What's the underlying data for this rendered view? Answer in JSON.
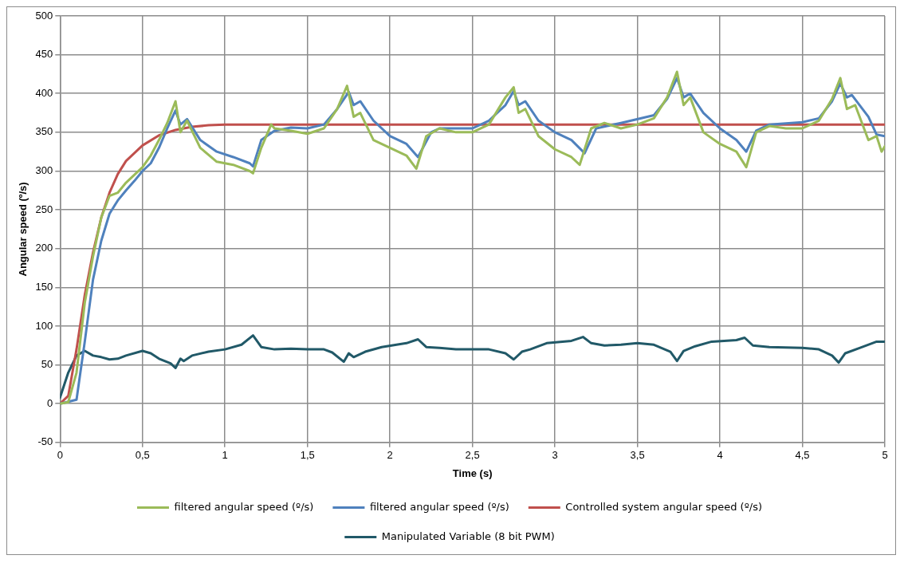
{
  "chart_data": {
    "type": "line",
    "xlabel": "Time (s)",
    "ylabel": "Angular speed (º/s)",
    "xlim": [
      0,
      5
    ],
    "xticks": [
      0,
      {
        "value": 0.5,
        "label": "0,5"
      },
      1,
      {
        "value": 1.5,
        "label": "1,5"
      },
      2,
      {
        "value": 2.5,
        "label": "2,5"
      },
      3,
      {
        "value": 3.5,
        "label": "3,5"
      },
      4,
      {
        "value": 4.5,
        "label": "4,5"
      },
      5
    ],
    "ylim": [
      -50,
      500
    ],
    "yticks": [
      -50,
      0,
      50,
      100,
      150,
      200,
      250,
      300,
      350,
      400,
      450,
      500
    ],
    "grid": true,
    "legend": "bottom",
    "marker": "none",
    "line_style": "solid",
    "series": [
      {
        "name": "filtered angular speed (º/s)",
        "color": "#9bbb59",
        "x": [
          0,
          0.05,
          0.1,
          0.15,
          0.2,
          0.25,
          0.3,
          0.35,
          0.4,
          0.45,
          0.5,
          0.55,
          0.6,
          0.65,
          0.7,
          0.73,
          0.77,
          0.85,
          0.95,
          1.05,
          1.15,
          1.17,
          1.22,
          1.28,
          1.3,
          1.4,
          1.5,
          1.6,
          1.68,
          1.74,
          1.78,
          1.82,
          1.9,
          2.0,
          2.1,
          2.16,
          2.22,
          2.3,
          2.4,
          2.5,
          2.6,
          2.7,
          2.75,
          2.78,
          2.82,
          2.9,
          3.0,
          3.1,
          3.15,
          3.22,
          3.3,
          3.4,
          3.5,
          3.6,
          3.68,
          3.74,
          3.78,
          3.82,
          3.9,
          4.0,
          4.1,
          4.16,
          4.22,
          4.3,
          4.4,
          4.5,
          4.6,
          4.68,
          4.73,
          4.77,
          4.82,
          4.9,
          4.95,
          4.98,
          5
        ],
        "values": [
          0,
          2,
          40,
          130,
          190,
          240,
          268,
          272,
          285,
          295,
          305,
          320,
          340,
          362,
          390,
          350,
          365,
          330,
          312,
          308,
          300,
          297,
          330,
          360,
          355,
          352,
          348,
          355,
          380,
          410,
          370,
          375,
          340,
          330,
          320,
          303,
          345,
          355,
          350,
          350,
          360,
          395,
          408,
          375,
          380,
          345,
          328,
          318,
          308,
          355,
          362,
          355,
          360,
          368,
          395,
          428,
          385,
          395,
          350,
          335,
          325,
          305,
          350,
          358,
          355,
          355,
          365,
          393,
          420,
          380,
          385,
          340,
          345,
          325,
          332
        ]
      },
      {
        "name": "filtered angular speed (º/s)",
        "color": "#4f81bd",
        "x": [
          0,
          0.1,
          0.15,
          0.2,
          0.25,
          0.3,
          0.35,
          0.4,
          0.45,
          0.5,
          0.55,
          0.6,
          0.65,
          0.7,
          0.73,
          0.77,
          0.85,
          0.95,
          1.05,
          1.15,
          1.17,
          1.22,
          1.3,
          1.4,
          1.5,
          1.6,
          1.68,
          1.75,
          1.78,
          1.82,
          1.9,
          2.0,
          2.1,
          2.17,
          2.25,
          2.3,
          2.5,
          2.6,
          2.7,
          2.75,
          2.78,
          2.82,
          2.9,
          3.0,
          3.1,
          3.18,
          3.25,
          3.4,
          3.6,
          3.68,
          3.74,
          3.78,
          3.82,
          3.9,
          4.0,
          4.1,
          4.16,
          4.22,
          4.3,
          4.5,
          4.6,
          4.68,
          4.73,
          4.77,
          4.8,
          4.9,
          4.95,
          5
        ],
        "values": [
          0,
          5,
          80,
          160,
          210,
          245,
          262,
          275,
          287,
          300,
          310,
          330,
          355,
          378,
          360,
          367,
          340,
          325,
          318,
          310,
          306,
          340,
          352,
          356,
          355,
          360,
          380,
          402,
          385,
          390,
          365,
          345,
          335,
          318,
          350,
          355,
          355,
          365,
          385,
          403,
          385,
          390,
          365,
          350,
          340,
          323,
          355,
          362,
          372,
          393,
          420,
          395,
          400,
          375,
          355,
          340,
          325,
          352,
          360,
          363,
          368,
          390,
          413,
          395,
          398,
          370,
          347,
          345
        ]
      },
      {
        "name": "Controlled system angular speed (º/s)",
        "color": "#c0504d",
        "x": [
          0,
          0.05,
          0.1,
          0.15,
          0.2,
          0.25,
          0.3,
          0.35,
          0.4,
          0.5,
          0.6,
          0.7,
          0.8,
          0.9,
          1.0,
          1.5,
          2,
          3,
          4,
          5
        ],
        "values": [
          0,
          10,
          70,
          140,
          195,
          240,
          272,
          296,
          313,
          333,
          346,
          353,
          357,
          359,
          360,
          360,
          360,
          360,
          360,
          360
        ]
      },
      {
        "name": "Manipulated Variable (8 bit PWM)",
        "color": "#215968",
        "x": [
          0,
          0.05,
          0.1,
          0.15,
          0.2,
          0.25,
          0.3,
          0.35,
          0.4,
          0.5,
          0.55,
          0.6,
          0.67,
          0.7,
          0.73,
          0.75,
          0.8,
          0.9,
          1.0,
          1.1,
          1.17,
          1.22,
          1.3,
          1.4,
          1.5,
          1.6,
          1.65,
          1.72,
          1.75,
          1.78,
          1.85,
          1.95,
          2.1,
          2.17,
          2.22,
          2.3,
          2.4,
          2.5,
          2.6,
          2.7,
          2.75,
          2.8,
          2.85,
          2.95,
          3.1,
          3.17,
          3.22,
          3.3,
          3.4,
          3.5,
          3.6,
          3.7,
          3.74,
          3.78,
          3.85,
          3.95,
          4.1,
          4.15,
          4.2,
          4.3,
          4.5,
          4.6,
          4.68,
          4.72,
          4.76,
          4.85,
          4.95,
          5
        ],
        "values": [
          8,
          40,
          62,
          68,
          62,
          60,
          57,
          58,
          62,
          68,
          65,
          58,
          52,
          46,
          58,
          55,
          62,
          67,
          70,
          76,
          88,
          73,
          70,
          71,
          70,
          70,
          66,
          54,
          65,
          60,
          67,
          73,
          78,
          83,
          73,
          72,
          70,
          70,
          70,
          65,
          57,
          67,
          70,
          78,
          81,
          86,
          78,
          75,
          76,
          78,
          76,
          67,
          55,
          68,
          74,
          80,
          82,
          85,
          75,
          73,
          72,
          70,
          62,
          53,
          65,
          72,
          80,
          80
        ]
      }
    ]
  }
}
